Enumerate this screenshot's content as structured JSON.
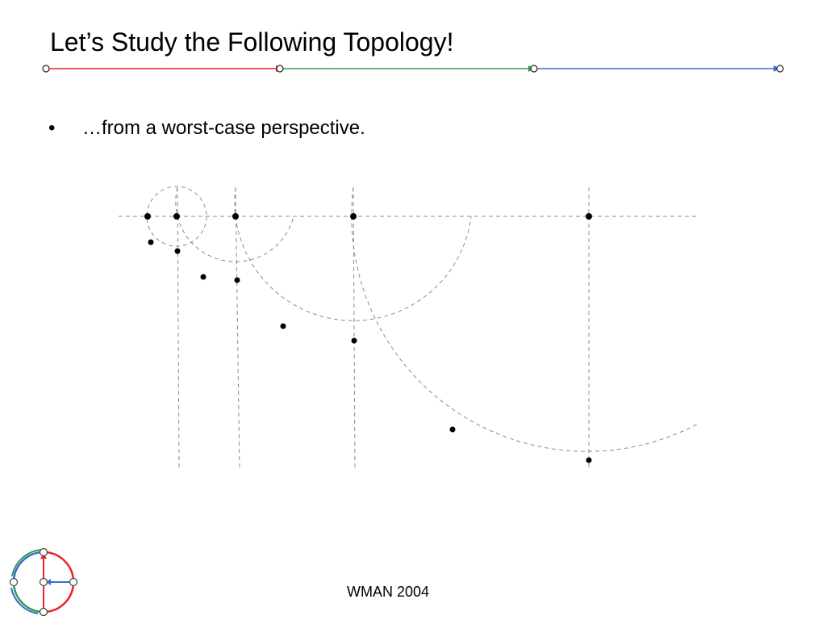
{
  "slide": {
    "title": "Let’s Study the Following Topology!",
    "bullets": [
      {
        "marker": "•",
        "text": "…from a worst-case perspective."
      }
    ],
    "footer": "WMAN 2004"
  },
  "title_rule": {
    "segment_colors": [
      "#e8232a",
      "#2f9a52",
      "#3a6bd0"
    ]
  },
  "logo": {
    "icon": "network-logo-icon",
    "colors": [
      "#e8232a",
      "#2f9a52",
      "#3a6bd0"
    ]
  },
  "topology": {
    "description_icon": "topology-diagram-icon",
    "line_color": "#8c8c8c",
    "node_color": "#000000"
  }
}
